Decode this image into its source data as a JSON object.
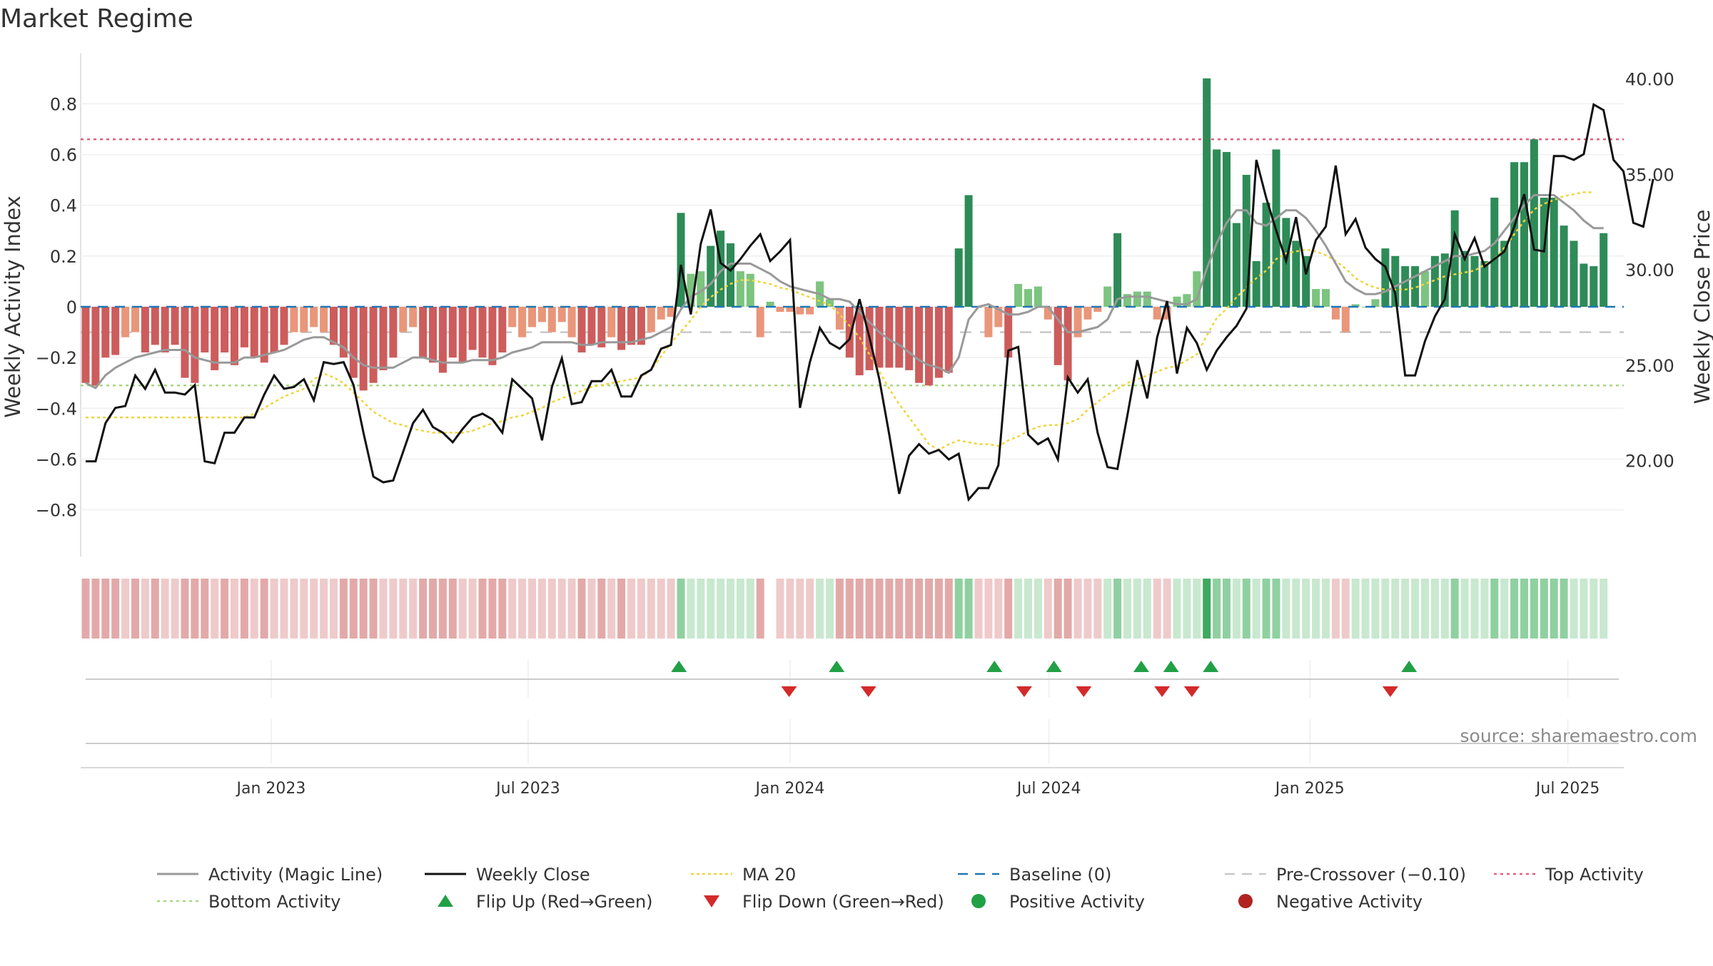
{
  "title": "Market Regime",
  "source": "source: sharemaestro.com",
  "colors": {
    "pos_strong": "#2e8b57",
    "pos_light": "#7cc47f",
    "neg_strong": "#cd5c5c",
    "neg_light": "#e9967a",
    "magic": "#999999",
    "close": "#111111",
    "ma20": "#f0d43a",
    "baseline": "#1f77b4",
    "precross": "#c8c8c8",
    "top": "#e06080",
    "bottom": "#a8d880",
    "flip_up": "#22a045",
    "flip_down": "#d42a2a",
    "pos_dot": "#22a045",
    "neg_dot": "#b22222"
  },
  "chart_data": {
    "type": "bar",
    "title": "Market Regime",
    "ylabel": "Weekly Activity Index",
    "y2label": "Weekly Close Price",
    "ylim": [
      -0.97,
      0.97
    ],
    "y2lim": [
      15.2,
      41.0
    ],
    "y_ticks": [
      -0.8,
      -0.6,
      -0.4,
      -0.2,
      0,
      0.2,
      0.4,
      0.6,
      0.8
    ],
    "y_tick_labels": [
      "−0.8",
      "−0.6",
      "−0.4",
      "−0.2",
      "0",
      "0.2",
      "0.4",
      "0.6",
      "0.8"
    ],
    "y2_ticks": [
      20,
      25,
      30,
      35,
      40
    ],
    "y2_tick_labels": [
      "20.00",
      "25.00",
      "30.00",
      "35.00",
      "40.00"
    ],
    "x_ticks": [
      {
        "label": "Jan 2023",
        "week": 18.7
      },
      {
        "label": "Jul 2023",
        "week": 44.6
      },
      {
        "label": "Jan 2024",
        "week": 71.0
      },
      {
        "label": "Jul 2024",
        "week": 97.1
      },
      {
        "label": "Jan 2025",
        "week": 123.4
      },
      {
        "label": "Jul 2025",
        "week": 149.4
      }
    ],
    "top_activity": 0.66,
    "bottom_activity": -0.31,
    "pre_crossover": -0.1,
    "baseline": 0,
    "activity": [
      -0.3,
      -0.31,
      -0.2,
      -0.19,
      -0.12,
      -0.1,
      -0.18,
      -0.15,
      -0.18,
      -0.15,
      -0.28,
      -0.3,
      -0.18,
      -0.25,
      -0.18,
      -0.23,
      -0.16,
      -0.2,
      -0.22,
      -0.18,
      -0.15,
      -0.1,
      -0.1,
      -0.08,
      -0.1,
      -0.15,
      -0.2,
      -0.28,
      -0.33,
      -0.3,
      -0.25,
      -0.2,
      -0.1,
      -0.08,
      -0.2,
      -0.22,
      -0.26,
      -0.2,
      -0.22,
      -0.17,
      -0.2,
      -0.23,
      -0.18,
      -0.08,
      -0.12,
      -0.08,
      -0.06,
      -0.1,
      -0.06,
      -0.12,
      -0.18,
      -0.15,
      -0.16,
      -0.12,
      -0.17,
      -0.15,
      -0.15,
      -0.1,
      -0.05,
      -0.04,
      0.37,
      0.13,
      0.14,
      0.24,
      0.3,
      0.25,
      0.14,
      0.13,
      -0.12,
      0.02,
      -0.02,
      -0.02,
      -0.03,
      -0.03,
      0.1,
      0.03,
      -0.09,
      -0.2,
      -0.27,
      -0.25,
      -0.24,
      -0.24,
      -0.24,
      -0.25,
      -0.3,
      -0.31,
      -0.28,
      -0.26,
      0.23,
      0.44,
      0.0,
      -0.12,
      -0.08,
      -0.2,
      0.09,
      0.07,
      0.08,
      -0.05,
      -0.23,
      -0.29,
      -0.12,
      -0.05,
      -0.02,
      0.08,
      0.29,
      0.05,
      0.06,
      0.06,
      -0.05,
      -0.05,
      0.04,
      0.05,
      0.14,
      0.9,
      0.62,
      0.61,
      0.33,
      0.52,
      0.18,
      0.41,
      0.62,
      0.35,
      0.26,
      0.2,
      0.07,
      0.07,
      -0.05,
      -0.1,
      0.01,
      0.0,
      0.03,
      0.23,
      0.2,
      0.16,
      0.16,
      0.14,
      0.2,
      0.21,
      0.38,
      0.22,
      0.2,
      0.18,
      0.43,
      0.26,
      0.57,
      0.57,
      0.66,
      0.43,
      0.43,
      0.32,
      0.26,
      0.17,
      0.16,
      0.29
    ],
    "weekly_close": [
      20.0,
      20.0,
      22.0,
      22.8,
      22.9,
      24.5,
      23.8,
      24.8,
      23.6,
      23.6,
      23.5,
      24.0,
      20.0,
      19.9,
      21.5,
      21.5,
      22.3,
      22.3,
      23.5,
      24.5,
      23.8,
      23.9,
      24.3,
      23.2,
      25.2,
      25.1,
      25.2,
      24.0,
      21.5,
      19.2,
      18.9,
      19.0,
      20.5,
      22.0,
      22.7,
      21.8,
      21.5,
      21.0,
      21.7,
      22.3,
      22.5,
      22.2,
      21.5,
      24.3,
      23.8,
      23.3,
      21.1,
      23.9,
      25.4,
      23.0,
      23.1,
      24.2,
      24.2,
      24.8,
      23.4,
      23.4,
      24.5,
      24.8,
      25.9,
      26.1,
      30.3,
      27.7,
      31.4,
      33.2,
      30.4,
      30.0,
      30.6,
      31.3,
      31.9,
      30.5,
      31.0,
      31.6,
      22.8,
      25.2,
      27.0,
      26.2,
      25.9,
      26.4,
      28.5,
      26.5,
      24.3,
      21.4,
      18.3,
      20.3,
      20.9,
      20.4,
      20.6,
      20.1,
      20.4,
      18.0,
      18.6,
      18.6,
      19.8,
      25.8,
      26.0,
      21.4,
      20.9,
      21.2,
      20.1,
      24.4,
      23.6,
      24.3,
      21.5,
      19.7,
      19.6,
      22.4,
      25.3,
      23.3,
      26.5,
      28.4,
      24.6,
      27.0,
      26.2,
      24.8,
      25.8,
      26.5,
      27.1,
      28.0,
      35.8,
      33.8,
      32.1,
      30.5,
      32.8,
      29.8,
      31.6,
      32.3,
      35.5,
      31.9,
      32.7,
      31.2,
      30.6,
      30.2,
      28.8,
      24.5,
      24.5,
      26.3,
      27.6,
      28.5,
      31.9,
      30.6,
      31.7,
      30.2,
      30.6,
      31.0,
      32.3,
      34.0,
      31.1,
      31.0,
      36.0,
      36.0,
      35.8,
      36.1,
      38.7,
      38.4,
      35.8,
      35.2,
      32.5,
      32.3,
      34.8
    ],
    "magic_line": [
      -0.3,
      -0.32,
      -0.27,
      -0.24,
      -0.22,
      -0.2,
      -0.19,
      -0.18,
      -0.17,
      -0.17,
      -0.17,
      -0.2,
      -0.21,
      -0.22,
      -0.22,
      -0.22,
      -0.2,
      -0.2,
      -0.19,
      -0.18,
      -0.17,
      -0.15,
      -0.13,
      -0.12,
      -0.12,
      -0.14,
      -0.16,
      -0.2,
      -0.23,
      -0.24,
      -0.24,
      -0.24,
      -0.22,
      -0.2,
      -0.2,
      -0.21,
      -0.22,
      -0.22,
      -0.22,
      -0.21,
      -0.21,
      -0.21,
      -0.2,
      -0.18,
      -0.17,
      -0.16,
      -0.14,
      -0.14,
      -0.14,
      -0.14,
      -0.15,
      -0.15,
      -0.14,
      -0.14,
      -0.14,
      -0.14,
      -0.13,
      -0.12,
      -0.1,
      -0.08,
      -0.01,
      0.04,
      0.06,
      0.09,
      0.14,
      0.17,
      0.17,
      0.17,
      0.15,
      0.13,
      0.1,
      0.08,
      0.07,
      0.06,
      0.05,
      0.03,
      0.03,
      0.02,
      -0.02,
      -0.06,
      -0.1,
      -0.13,
      -0.15,
      -0.18,
      -0.21,
      -0.23,
      -0.24,
      -0.26,
      -0.2,
      -0.05,
      0.0,
      0.01,
      -0.01,
      -0.03,
      -0.03,
      -0.02,
      0.0,
      0.0,
      -0.05,
      -0.1,
      -0.1,
      -0.09,
      -0.08,
      -0.05,
      0.03,
      0.04,
      0.04,
      0.04,
      0.03,
      0.02,
      0.01,
      0.01,
      0.03,
      0.15,
      0.25,
      0.33,
      0.38,
      0.38,
      0.33,
      0.32,
      0.35,
      0.38,
      0.38,
      0.35,
      0.3,
      0.24,
      0.17,
      0.1,
      0.07,
      0.05,
      0.05,
      0.06,
      0.08,
      0.1,
      0.12,
      0.14,
      0.16,
      0.18,
      0.2,
      0.2,
      0.21,
      0.22,
      0.25,
      0.3,
      0.35,
      0.4,
      0.44,
      0.44,
      0.44,
      0.41,
      0.38,
      0.34,
      0.31,
      0.31
    ],
    "ma20": [
      22.3,
      22.3,
      22.3,
      22.3,
      22.3,
      22.3,
      22.3,
      22.3,
      22.3,
      22.3,
      22.3,
      22.3,
      22.3,
      22.3,
      22.3,
      22.3,
      22.3,
      22.5,
      22.8,
      23.1,
      23.4,
      23.6,
      23.8,
      24.3,
      24.6,
      24.4,
      24.1,
      23.6,
      23.1,
      22.6,
      22.3,
      22.0,
      21.9,
      21.7,
      21.6,
      21.5,
      21.5,
      21.5,
      21.5,
      21.6,
      21.8,
      22.0,
      22.1,
      22.3,
      22.4,
      22.6,
      22.8,
      23.1,
      23.3,
      23.5,
      23.7,
      23.9,
      24.0,
      24.1,
      24.2,
      24.3,
      24.4,
      24.8,
      25.5,
      26.2,
      26.8,
      27.4,
      28.1,
      28.6,
      29.0,
      29.3,
      29.5,
      29.5,
      29.4,
      29.3,
      29.1,
      29.0,
      28.8,
      28.6,
      28.4,
      28.2,
      27.7,
      27.1,
      26.5,
      25.6,
      24.7,
      23.8,
      23.0,
      22.3,
      21.6,
      20.9,
      20.6,
      20.9,
      21.1,
      21.0,
      20.9,
      20.9,
      20.8,
      21.1,
      21.3,
      21.6,
      21.8,
      21.9,
      21.9,
      22.0,
      22.2,
      22.7,
      23.1,
      23.5,
      23.8,
      24.1,
      24.3,
      24.5,
      24.7,
      24.9,
      25.0,
      25.3,
      25.6,
      26.6,
      27.5,
      28.0,
      28.6,
      29.1,
      29.6,
      30.0,
      30.6,
      30.9,
      31.0,
      31.1,
      31.0,
      30.8,
      30.5,
      30.1,
      29.6,
      29.3,
      29.1,
      29.0,
      29.0,
      29.0,
      29.1,
      29.3,
      29.5,
      29.7,
      29.8,
      29.9,
      30.0,
      30.3,
      30.6,
      31.2,
      31.9,
      32.6,
      33.2,
      33.5,
      33.7,
      33.9,
      34.0,
      34.1,
      34.1
    ],
    "regime_strip": [
      -2,
      -2,
      -2,
      -2,
      -1,
      -2,
      -1,
      -2,
      -1,
      -1,
      -2,
      -2,
      -2,
      -1,
      -2,
      -1,
      -2,
      -1,
      -2,
      -1,
      -1,
      -1,
      -1,
      -1,
      -1,
      -1,
      -2,
      -2,
      -2,
      -2,
      -1,
      -1,
      -1,
      -1,
      -2,
      -2,
      -2,
      -2,
      -1,
      -1,
      -2,
      -2,
      -2,
      -1,
      -1,
      -1,
      -1,
      -1,
      -1,
      -1,
      -2,
      -1,
      -2,
      -1,
      -2,
      -1,
      -1,
      -1,
      -1,
      -1,
      2,
      1,
      1,
      1,
      1,
      1,
      1,
      1,
      -2,
      0,
      -1,
      -1,
      -1,
      -1,
      1,
      1,
      -2,
      -2,
      -2,
      -2,
      -2,
      -2,
      -2,
      -2,
      -2,
      -2,
      -2,
      -2,
      2,
      2,
      -1,
      -1,
      -1,
      -2,
      1,
      1,
      1,
      -1,
      -2,
      -2,
      -1,
      -1,
      -1,
      1,
      2,
      1,
      1,
      1,
      -1,
      -1,
      1,
      1,
      1,
      3,
      2,
      2,
      1,
      2,
      1,
      2,
      2,
      1,
      1,
      1,
      1,
      1,
      -1,
      -1,
      1,
      1,
      1,
      1,
      1,
      1,
      1,
      1,
      1,
      1,
      2,
      1,
      1,
      1,
      2,
      1,
      2,
      2,
      2,
      2,
      2,
      2,
      1,
      1,
      1,
      1
    ],
    "flip_up_weeks": [
      59.8,
      75.7,
      91.6,
      97.6,
      106.4,
      109.4,
      113.4,
      133.4
    ],
    "flip_down_weeks": [
      70.9,
      78.9,
      94.6,
      100.6,
      108.5,
      111.5,
      131.5
    ]
  },
  "legend": [
    {
      "label": "Activity (Magic Line)",
      "icon": "solid-line-gray"
    },
    {
      "label": "Weekly Close",
      "icon": "solid-line-black"
    },
    {
      "label": "MA 20",
      "icon": "dotted-line-yellow"
    },
    {
      "label": "Baseline (0)",
      "icon": "dashed-line-blue"
    },
    {
      "label": "Pre-Crossover (−0.10)",
      "icon": "dashed-line-gray"
    },
    {
      "label": "Top Activity",
      "icon": "dotted-line-red"
    },
    {
      "label": "Bottom Activity",
      "icon": "dotted-line-green"
    },
    {
      "label": "Flip Up (Red→Green)",
      "icon": "triangle-up-green"
    },
    {
      "label": "Flip Down (Green→Red)",
      "icon": "triangle-down-red"
    },
    {
      "label": "Positive Activity",
      "icon": "dot-green"
    },
    {
      "label": "Negative Activity",
      "icon": "dot-red"
    }
  ]
}
